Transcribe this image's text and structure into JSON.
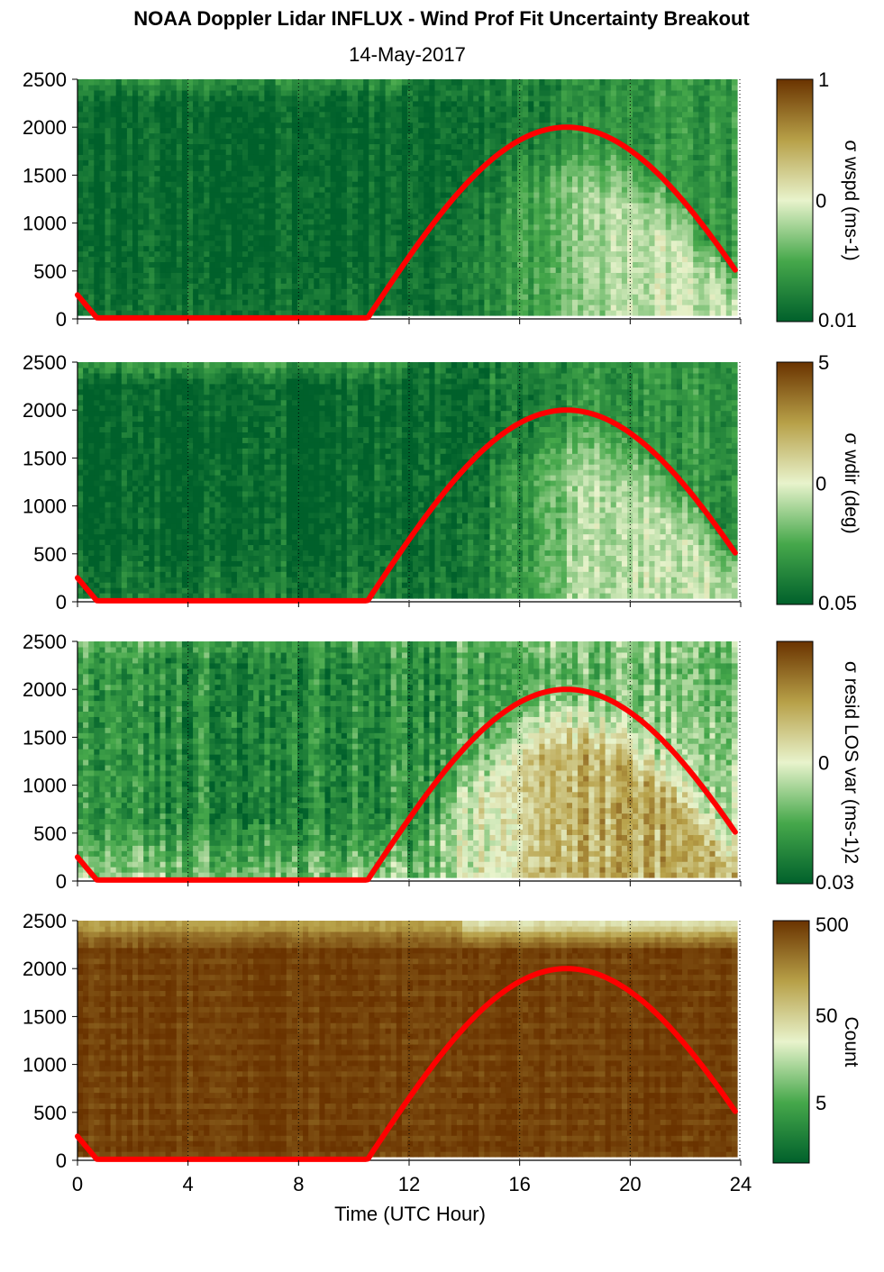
{
  "title": "NOAA Doppler Lidar INFLUX - Wind Prof Fit Uncertainty Breakout",
  "subtitle": "14-May-2017",
  "chart_data": {
    "type": "heatmap",
    "xlabel": "Time (UTC Hour)",
    "xlim": [
      0,
      24
    ],
    "xticks": [
      "0",
      "4",
      "8",
      "12",
      "16",
      "20",
      "24"
    ],
    "ylim": [
      0,
      2500
    ],
    "yticks": [
      "0",
      "500",
      "1000",
      "1500",
      "2000",
      "2500"
    ],
    "grid_x_dotted": [
      4,
      8,
      12,
      16,
      20,
      24
    ],
    "colormap": [
      "#00602b",
      "#46a84b",
      "#e8f3cc",
      "#b7a048",
      "#6a3300"
    ],
    "overlay_curve": {
      "color": "#ff0000",
      "points": [
        [
          0,
          250
        ],
        [
          0.7,
          10
        ],
        [
          10.5,
          10
        ],
        [
          12,
          560
        ],
        [
          14,
          1300
        ],
        [
          16,
          1850
        ],
        [
          17.7,
          2000
        ],
        [
          19,
          1900
        ],
        [
          20,
          1720
        ],
        [
          22,
          1130
        ],
        [
          23.8,
          410
        ]
      ]
    },
    "panels": [
      {
        "name": "σ wspd (ms-1)",
        "colorbar_label": "σ wspd (ms-1)",
        "colorbar_ticks": [
          "1",
          "0",
          "0.01"
        ],
        "level_points": [
          [
            0,
            0.02
          ],
          [
            12,
            0.02
          ],
          [
            14,
            0.1
          ],
          [
            16,
            0.2
          ],
          [
            18,
            0.35
          ],
          [
            20,
            0.45
          ],
          [
            24,
            0.45
          ]
        ],
        "low_level_boost": 0.04,
        "top_boost": 0.15,
        "noise": 0.12
      },
      {
        "name": "σ wdir (deg)",
        "colorbar_label": "σ wdir (deg)",
        "colorbar_ticks": [
          "5",
          "0",
          "0.05"
        ],
        "level_points": [
          [
            0,
            0.02
          ],
          [
            12,
            0.03
          ],
          [
            14,
            0.1
          ],
          [
            16,
            0.2
          ],
          [
            18,
            0.38
          ],
          [
            20,
            0.45
          ],
          [
            24,
            0.45
          ]
        ],
        "low_level_boost": 0.08,
        "top_boost": 0.2,
        "noise": 0.14
      },
      {
        "name": "σ resid LOS var (ms-1)2",
        "colorbar_label": "σ resid LOS var (ms-1)2",
        "colorbar_ticks": [
          "0",
          "0.03"
        ],
        "level_points": [
          [
            0,
            0.18
          ],
          [
            8,
            0.12
          ],
          [
            12,
            0.2
          ],
          [
            14,
            0.45
          ],
          [
            16,
            0.62
          ],
          [
            18,
            0.7
          ],
          [
            20,
            0.72
          ],
          [
            24,
            0.7
          ]
        ],
        "low_level_boost": 0.2,
        "top_boost": 0.1,
        "noise": 0.18
      },
      {
        "name": "Count",
        "colorbar_label": "Count",
        "colorbar_ticks": [
          "500",
          "50",
          "5"
        ],
        "level_points": [
          [
            0,
            0.98
          ],
          [
            24,
            0.98
          ]
        ],
        "low_level_boost": 0.0,
        "top_boost": -0.35,
        "noise": 0.05
      }
    ]
  }
}
